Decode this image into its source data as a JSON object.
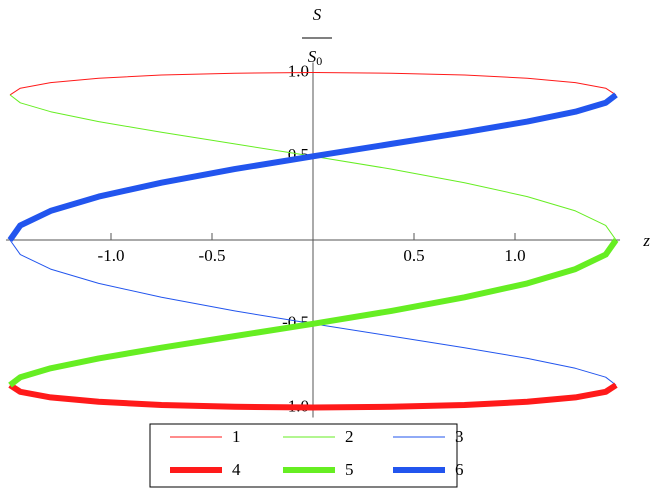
{
  "chart_data": {
    "type": "line",
    "xlabel": "z",
    "ylabel": {
      "numerator": "S",
      "denominator": "S",
      "denominator_subscript": "0"
    },
    "x": [
      -1.5,
      -1.449,
      -1.299,
      -1.061,
      -0.75,
      -0.388,
      0,
      0.388,
      0.75,
      1.061,
      1.299,
      1.449,
      1.5
    ],
    "series": [
      {
        "name": "1",
        "color": "#ff1a1a",
        "linewidth": 1,
        "values": [
          0.866,
          0.906,
          0.94,
          0.966,
          0.985,
          0.996,
          1,
          0.996,
          0.985,
          0.966,
          0.94,
          0.906,
          0.866
        ]
      },
      {
        "name": "2",
        "color": "#66ee22",
        "linewidth": 1,
        "values": [
          0.866,
          0.819,
          0.766,
          0.707,
          0.643,
          0.574,
          0.5,
          0.423,
          0.342,
          0.259,
          0.174,
          0.087,
          0
        ]
      },
      {
        "name": "3",
        "color": "#2255ee",
        "linewidth": 1,
        "values": [
          0,
          -0.087,
          -0.174,
          -0.259,
          -0.342,
          -0.423,
          -0.5,
          -0.574,
          -0.643,
          -0.707,
          -0.766,
          -0.819,
          -0.866
        ]
      },
      {
        "name": "4",
        "color": "#ff1a1a",
        "linewidth": 6,
        "values": [
          -0.866,
          -0.906,
          -0.94,
          -0.966,
          -0.985,
          -0.996,
          -1,
          -0.996,
          -0.985,
          -0.966,
          -0.94,
          -0.906,
          -0.866
        ]
      },
      {
        "name": "5",
        "color": "#66ee22",
        "linewidth": 6,
        "values": [
          -0.866,
          -0.819,
          -0.766,
          -0.707,
          -0.643,
          -0.574,
          -0.5,
          -0.423,
          -0.342,
          -0.259,
          -0.174,
          -0.087,
          0
        ]
      },
      {
        "name": "6",
        "color": "#2255ee",
        "linewidth": 6,
        "values": [
          0,
          0.087,
          0.174,
          0.259,
          0.342,
          0.423,
          0.5,
          0.574,
          0.643,
          0.707,
          0.766,
          0.819,
          0.866
        ]
      }
    ],
    "xlim": [
      -1.52,
      1.52
    ],
    "ylim": [
      -1.06,
      1.06
    ],
    "xticks": [
      {
        "value": -1,
        "label": "-1.0"
      },
      {
        "value": -0.5,
        "label": "-0.5"
      },
      {
        "value": 0.5,
        "label": "0.5"
      },
      {
        "value": 1,
        "label": "1.0"
      }
    ],
    "yticks": [
      {
        "value": -1,
        "label": "-1.0"
      },
      {
        "value": -0.5,
        "label": "-0.5"
      },
      {
        "value": 0.5,
        "label": "0.5"
      },
      {
        "value": 1,
        "label": "1.0"
      }
    ],
    "grid": false,
    "legend": "bottom"
  }
}
